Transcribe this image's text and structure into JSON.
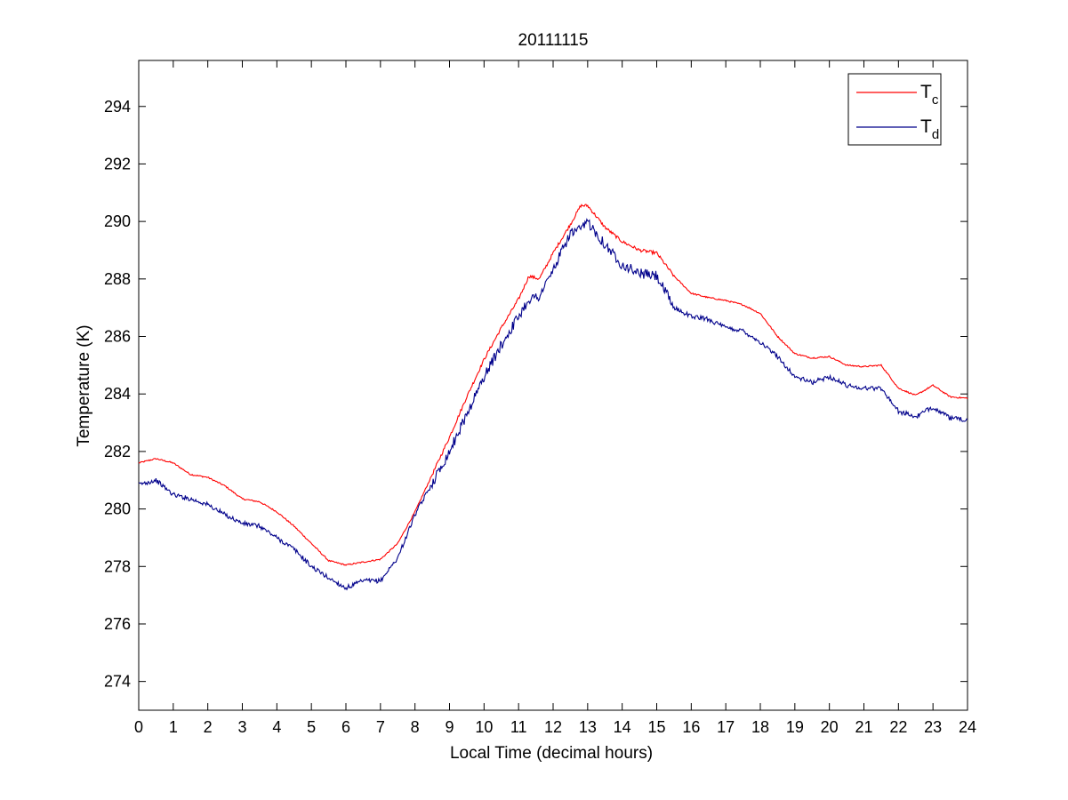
{
  "chart_data": {
    "type": "line",
    "title": "20111115",
    "xlabel": "Local Time (decimal hours)",
    "ylabel": "Temperature (K)",
    "xlim": [
      0,
      24
    ],
    "ylim": [
      273,
      295.6
    ],
    "xticks": [
      0,
      1,
      2,
      3,
      4,
      5,
      6,
      7,
      8,
      9,
      10,
      11,
      12,
      13,
      14,
      15,
      16,
      17,
      18,
      19,
      20,
      21,
      22,
      23,
      24
    ],
    "yticks": [
      274,
      276,
      278,
      280,
      282,
      284,
      286,
      288,
      290,
      292,
      294
    ],
    "grid": false,
    "legend_position": "top-right",
    "series": [
      {
        "name": "Tc",
        "name_base": "T",
        "name_sub": "c",
        "color": "#ff0000",
        "x": [
          0,
          0.5,
          1,
          1.5,
          2,
          2.5,
          3,
          3.5,
          4,
          4.5,
          5,
          5.5,
          6,
          6.5,
          7,
          7.5,
          8,
          8.5,
          9,
          9.5,
          10,
          10.5,
          11,
          11.3,
          11.6,
          12,
          12.5,
          12.8,
          13,
          13.5,
          14,
          14.5,
          15,
          15.5,
          16,
          16.5,
          17,
          17.5,
          18,
          18.5,
          19,
          19.5,
          20,
          20.5,
          21,
          21.5,
          22,
          22.5,
          23,
          23.5,
          24
        ],
        "y": [
          281.6,
          281.75,
          281.6,
          281.2,
          281.1,
          280.8,
          280.35,
          280.25,
          279.9,
          279.4,
          278.8,
          278.2,
          278.05,
          278.15,
          278.25,
          278.8,
          279.9,
          281.2,
          282.5,
          283.9,
          285.2,
          286.3,
          287.3,
          288.1,
          288.0,
          288.9,
          289.9,
          290.55,
          290.55,
          289.8,
          289.3,
          289.0,
          288.9,
          288.1,
          287.5,
          287.35,
          287.25,
          287.1,
          286.8,
          286.0,
          285.4,
          285.25,
          285.3,
          285.0,
          284.95,
          285.0,
          284.2,
          283.95,
          284.3,
          283.9,
          283.85
        ]
      },
      {
        "name": "Td",
        "name_base": "T",
        "name_sub": "d",
        "color": "#00008b",
        "x": [
          0,
          0.5,
          1,
          1.5,
          2,
          2.5,
          3,
          3.5,
          4,
          4.5,
          5,
          5.5,
          6,
          6.5,
          7,
          7.5,
          8,
          8.5,
          9,
          9.5,
          10,
          10.5,
          11,
          11.3,
          11.6,
          12,
          12.5,
          12.8,
          13,
          13.5,
          14,
          14.5,
          15,
          15.5,
          16,
          16.5,
          17,
          17.5,
          18,
          18.5,
          19,
          19.5,
          20,
          20.5,
          21,
          21.5,
          22,
          22.5,
          23,
          23.5,
          24
        ],
        "y": [
          280.85,
          281.0,
          280.5,
          280.35,
          280.15,
          279.8,
          279.5,
          279.4,
          279.0,
          278.6,
          278.0,
          277.6,
          277.25,
          277.5,
          277.5,
          278.3,
          279.8,
          280.9,
          282.0,
          283.3,
          284.6,
          285.7,
          286.7,
          287.3,
          287.4,
          288.3,
          289.6,
          289.7,
          290.0,
          289.2,
          288.5,
          288.2,
          288.1,
          287.0,
          286.7,
          286.6,
          286.3,
          286.2,
          285.8,
          285.3,
          284.6,
          284.4,
          284.6,
          284.3,
          284.2,
          284.2,
          283.4,
          283.2,
          283.55,
          283.15,
          283.1
        ]
      }
    ]
  }
}
